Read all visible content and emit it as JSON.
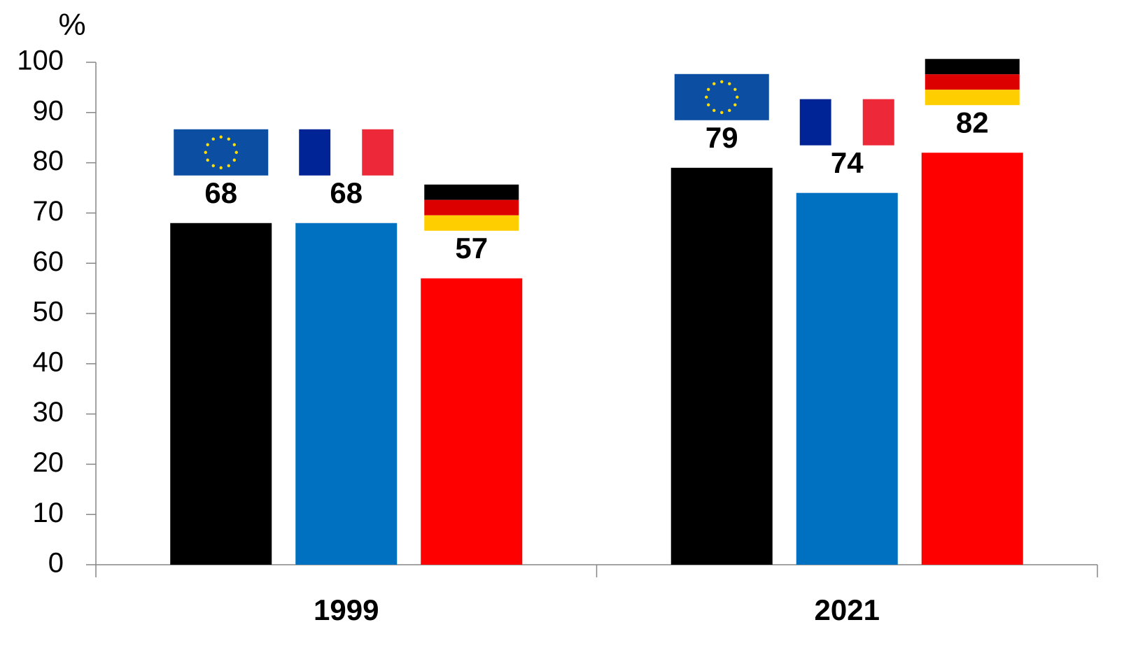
{
  "chart_data": {
    "type": "bar",
    "y_label": "%",
    "categories": [
      "1999",
      "2021"
    ],
    "series": [
      {
        "color": "#000000",
        "values": [
          68,
          79
        ]
      },
      {
        "color": "#0070c0",
        "values": [
          68,
          74
        ]
      },
      {
        "color": "#ff0000",
        "values": [
          57,
          82
        ]
      }
    ],
    "ylim": [
      0,
      100
    ],
    "yticks": [
      0,
      10,
      20,
      30,
      40,
      50,
      60,
      70,
      80,
      90,
      100
    ]
  }
}
